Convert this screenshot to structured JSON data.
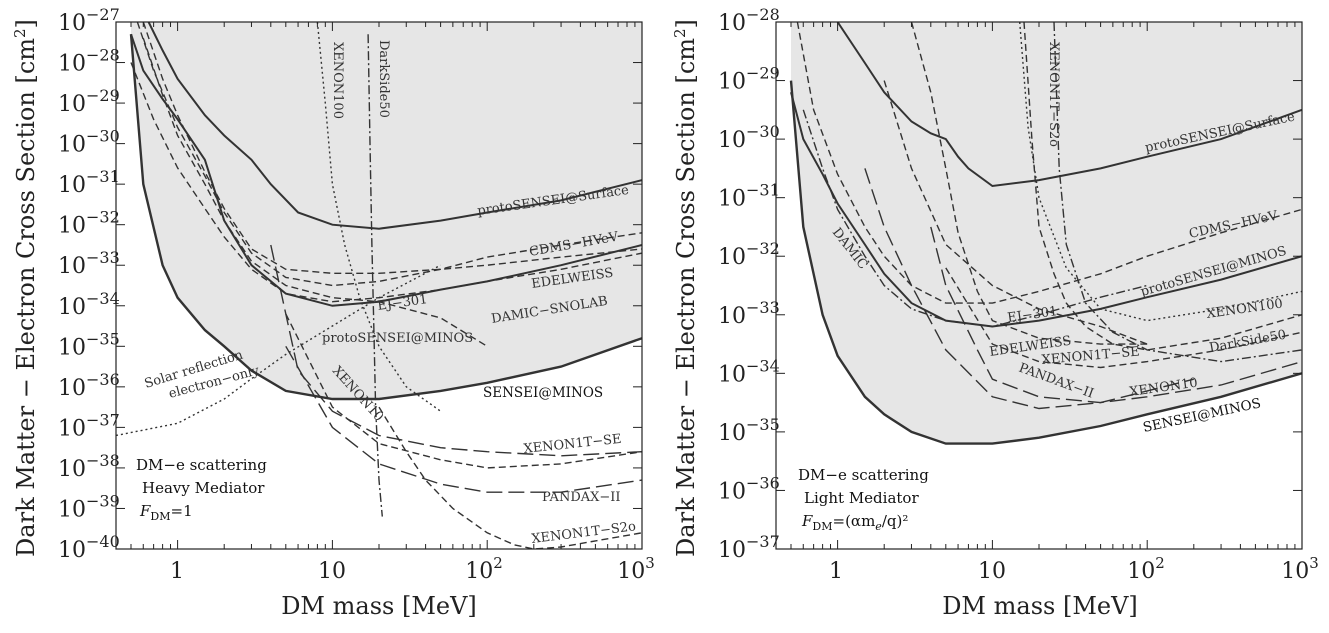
{
  "chart_data": [
    {
      "type": "line",
      "panel": "left",
      "xlabel": "DM mass [MeV]",
      "ylabel": "Dark Matter − Electron Cross Section [cm²]",
      "x_scale": "log",
      "y_scale": "log",
      "xlim": [
        0.4,
        1000
      ],
      "ylim": [
        1e-40,
        1e-27
      ],
      "x_ticks": [
        {
          "v": 1,
          "label": "1"
        },
        {
          "v": 10,
          "label": "10"
        },
        {
          "v": 100,
          "label": "10²"
        },
        {
          "v": 1000,
          "label": "10³"
        }
      ],
      "y_ticks": [
        -27,
        -28,
        -29,
        -30,
        -31,
        -32,
        -33,
        -34,
        -35,
        -36,
        -37,
        -38,
        -39,
        -40
      ],
      "annotation": [
        "DM−e scattering",
        "Heavy Mediator",
        "F_DM=1"
      ],
      "region_fill": "#e6e6e6",
      "series": [
        {
          "name": "SENSEI@MINOS",
          "style": "solid-thick",
          "x": [
            0.5,
            0.6,
            0.8,
            1,
            1.5,
            2,
            3,
            5,
            10,
            20,
            50,
            100,
            300,
            1000
          ],
          "logy": [
            -27.3,
            -31.0,
            -33.0,
            -33.8,
            -34.6,
            -35.0,
            -35.6,
            -36.1,
            -36.3,
            -36.3,
            -36.1,
            -35.9,
            -35.5,
            -34.8
          ]
        },
        {
          "name": "protoSENSEI@Surface",
          "style": "solid",
          "x": [
            0.65,
            0.8,
            1,
            1.5,
            2,
            3,
            4,
            6,
            10,
            20,
            50,
            100,
            300,
            1000
          ],
          "logy": [
            -27.0,
            -27.7,
            -28.4,
            -29.3,
            -29.8,
            -30.4,
            -31.0,
            -31.7,
            -32.0,
            -32.1,
            -31.9,
            -31.7,
            -31.4,
            -30.9
          ]
        },
        {
          "name": "protoSENSEI@MINOS",
          "style": "solid",
          "x": [
            0.5,
            0.6,
            0.8,
            1,
            1.5,
            2,
            3,
            5,
            10,
            20,
            50,
            100,
            300,
            1000
          ],
          "logy": [
            -27.3,
            -28.2,
            -28.9,
            -29.4,
            -30.4,
            -31.9,
            -33.0,
            -33.7,
            -34.0,
            -33.9,
            -33.6,
            -33.4,
            -33.0,
            -32.5
          ]
        },
        {
          "name": "DAMIC−SNOLAB",
          "style": "dashed",
          "x": [
            0.5,
            0.7,
            1,
            1.5,
            2,
            3,
            5,
            10,
            20,
            50,
            100,
            300,
            1000
          ],
          "logy": [
            -28.0,
            -29.4,
            -30.6,
            -31.6,
            -32.3,
            -33.1,
            -33.7,
            -33.9,
            -33.8,
            -33.6,
            -33.4,
            -33.1,
            -32.7
          ]
        },
        {
          "name": "CDMS−HVeV",
          "style": "dashed",
          "x": [
            0.55,
            0.7,
            1,
            1.5,
            2,
            3,
            5,
            10,
            20,
            50,
            100,
            300,
            1000
          ],
          "logy": [
            -27.0,
            -28.2,
            -29.6,
            -30.8,
            -31.7,
            -32.7,
            -33.3,
            -33.5,
            -33.4,
            -33.1,
            -32.8,
            -32.5,
            -32.2
          ]
        },
        {
          "name": "EDELWEISS",
          "style": "dashed",
          "x": [
            0.6,
            0.8,
            1,
            1.5,
            2,
            3,
            5,
            10,
            20,
            50,
            100,
            300,
            1000
          ],
          "logy": [
            -27.0,
            -28.4,
            -29.3,
            -30.7,
            -31.6,
            -32.6,
            -33.1,
            -33.2,
            -33.2,
            -33.1,
            -33.0,
            -32.8,
            -32.6
          ]
        },
        {
          "name": "EJ−301",
          "style": "dashed",
          "x": [
            0.6,
            0.8,
            1,
            1.5,
            2,
            3,
            5,
            10,
            20,
            50,
            100
          ],
          "logy": [
            -27.4,
            -28.8,
            -29.8,
            -31.0,
            -31.9,
            -32.9,
            -33.5,
            -33.8,
            -33.9,
            -34.3,
            -35.0
          ]
        },
        {
          "name": "XENON10",
          "style": "longdash",
          "x": [
            4,
            5,
            6,
            10,
            20,
            50,
            100,
            300,
            1000
          ],
          "logy": [
            -32.5,
            -34.2,
            -35.6,
            -36.6,
            -37.2,
            -37.5,
            -37.6,
            -37.7,
            -37.6
          ]
        },
        {
          "name": "XENON1T−SE",
          "style": "dashed",
          "x": [
            5,
            10,
            20,
            50,
            100,
            300,
            1000
          ],
          "logy": [
            -34.2,
            -36.5,
            -37.4,
            -37.8,
            -38.0,
            -37.9,
            -37.6
          ]
        },
        {
          "name": "PANDAX−II",
          "style": "longdash",
          "x": [
            5,
            10,
            20,
            50,
            100,
            300,
            1000
          ],
          "logy": [
            -35.0,
            -37.0,
            -37.9,
            -38.4,
            -38.6,
            -38.6,
            -38.3
          ]
        },
        {
          "name": "XENON1T−S2o",
          "style": "dashed",
          "x": [
            20,
            30,
            40,
            60,
            100,
            150,
            200,
            300,
            500,
            1000
          ],
          "logy": [
            -36.5,
            -37.6,
            -38.3,
            -39.0,
            -39.6,
            -39.9,
            -40.0,
            -39.95,
            -39.8,
            -39.6
          ]
        },
        {
          "name": "XENON100",
          "style": "dotted",
          "x": [
            8,
            9,
            10,
            12,
            15,
            20,
            30,
            50
          ],
          "logy": [
            -27.0,
            -29.0,
            -31.0,
            -32.5,
            -33.8,
            -35.0,
            -36.0,
            -36.6
          ]
        },
        {
          "name": "DarkSide50",
          "style": "dashdot",
          "x": [
            17,
            17.5,
            18,
            18.5,
            19,
            20,
            21
          ],
          "logy": [
            -27.3,
            -30.0,
            -32.5,
            -34.5,
            -36.5,
            -38.3,
            -39.2
          ]
        },
        {
          "name": "Solar reflection electron−only",
          "style": "dotted",
          "x": [
            0.4,
            1,
            2,
            3,
            5,
            10,
            20,
            50
          ],
          "logy": [
            -37.2,
            -36.9,
            -36.3,
            -35.8,
            -35.2,
            -34.5,
            -33.8,
            -33.0
          ]
        }
      ]
    },
    {
      "type": "line",
      "panel": "right",
      "xlabel": "DM mass [MeV]",
      "ylabel": "Dark Matter − Electron Cross Section [cm²]",
      "x_scale": "log",
      "y_scale": "log",
      "xlim": [
        0.4,
        1000
      ],
      "ylim": [
        1e-37,
        1e-28
      ],
      "x_ticks": [
        {
          "v": 1,
          "label": "1"
        },
        {
          "v": 10,
          "label": "10"
        },
        {
          "v": 100,
          "label": "10²"
        },
        {
          "v": 1000,
          "label": "10³"
        }
      ],
      "y_ticks": [
        -28,
        -29,
        -30,
        -31,
        -32,
        -33,
        -34,
        -35,
        -36,
        -37
      ],
      "annotation": [
        "DM−e scattering",
        "Light Mediator",
        "F_DM=(αmₑ/q)²"
      ],
      "region_fill": "#e6e6e6",
      "series": [
        {
          "name": "SENSEI@MINOS",
          "style": "solid-thick",
          "x": [
            0.5,
            0.6,
            0.8,
            1,
            1.5,
            2,
            3,
            5,
            10,
            20,
            50,
            100,
            300,
            1000
          ],
          "logy": [
            -29.0,
            -31.5,
            -33.0,
            -33.7,
            -34.4,
            -34.7,
            -35.0,
            -35.2,
            -35.2,
            -35.1,
            -34.9,
            -34.7,
            -34.4,
            -34.0
          ]
        },
        {
          "name": "protoSENSEI@Surface",
          "style": "solid",
          "x": [
            1,
            1.5,
            2,
            3,
            4,
            5,
            6,
            7,
            10,
            20,
            50,
            100,
            300,
            1000
          ],
          "logy": [
            -28.0,
            -28.7,
            -29.2,
            -29.7,
            -29.9,
            -30.0,
            -30.3,
            -30.5,
            -30.8,
            -30.7,
            -30.5,
            -30.3,
            -30.0,
            -29.5
          ]
        },
        {
          "name": "protoSENSEI@MINOS",
          "style": "solid",
          "x": [
            0.5,
            0.6,
            0.8,
            1,
            1.5,
            2,
            3,
            5,
            10,
            20,
            50,
            100,
            300,
            1000
          ],
          "logy": [
            -29.2,
            -30.0,
            -30.6,
            -31.1,
            -31.8,
            -32.3,
            -32.8,
            -33.1,
            -33.2,
            -33.1,
            -32.9,
            -32.7,
            -32.4,
            -32.0
          ]
        },
        {
          "name": "CDMS−HVeV",
          "style": "dashed",
          "x": [
            0.55,
            0.7,
            1,
            1.5,
            2,
            3,
            5,
            10,
            20,
            50,
            100,
            300,
            1000
          ],
          "logy": [
            -28.0,
            -29.5,
            -30.6,
            -31.5,
            -32.0,
            -32.5,
            -32.8,
            -32.8,
            -32.6,
            -32.3,
            -32.0,
            -31.6,
            -31.2
          ]
        },
        {
          "name": "EDELWEISS",
          "style": "dashed",
          "x": [
            3,
            4,
            5,
            6,
            8,
            10,
            20,
            50,
            100
          ],
          "logy": [
            -28.0,
            -29.2,
            -30.5,
            -31.6,
            -32.6,
            -33.1,
            -33.4,
            -33.5,
            -33.5
          ]
        },
        {
          "name": "EJ−301",
          "style": "dashed",
          "x": [
            2,
            3,
            5,
            10,
            20,
            50,
            100
          ],
          "logy": [
            -29.0,
            -30.5,
            -31.8,
            -32.5,
            -32.9,
            -33.2,
            -33.5
          ]
        },
        {
          "name": "DAMIC",
          "style": "dashdot",
          "x": [
            0.6,
            0.8,
            1,
            1.5,
            2,
            3,
            5,
            10,
            20,
            50,
            100
          ],
          "logy": [
            -29.5,
            -30.5,
            -31.2,
            -32.0,
            -32.5,
            -32.9,
            -33.1,
            -33.2,
            -33.0,
            -32.7,
            -32.5
          ]
        },
        {
          "name": "XENON10",
          "style": "longdash",
          "x": [
            1.5,
            2,
            3,
            5,
            10,
            20,
            50,
            100,
            200
          ],
          "logy": [
            -30.5,
            -31.5,
            -32.5,
            -33.6,
            -34.4,
            -34.6,
            -34.5,
            -34.3,
            -34.1
          ]
        },
        {
          "name": "XENON1T−SE",
          "style": "dashed",
          "x": [
            5,
            10,
            20,
            50,
            100,
            300,
            1000
          ],
          "logy": [
            -32.2,
            -33.5,
            -33.8,
            -33.9,
            -33.8,
            -33.6,
            -33.3
          ]
        },
        {
          "name": "PANDAX−II",
          "style": "longdash",
          "x": [
            4,
            5,
            8,
            10,
            20,
            50,
            100,
            300,
            1000
          ],
          "logy": [
            -31.5,
            -32.5,
            -33.6,
            -34.1,
            -34.4,
            -34.5,
            -34.4,
            -34.2,
            -33.8
          ]
        },
        {
          "name": "XENON1T−S2o",
          "style": "dashed",
          "x": [
            16,
            18,
            20,
            25,
            30,
            40,
            60,
            100,
            300,
            1000
          ],
          "logy": [
            -28.0,
            -30.0,
            -31.5,
            -32.3,
            -32.8,
            -33.2,
            -33.5,
            -33.6,
            -33.4,
            -33.0
          ]
        },
        {
          "name": "XENON100",
          "style": "dotted",
          "x": [
            15,
            17,
            20,
            30,
            50,
            100,
            300,
            1000
          ],
          "logy": [
            -28.0,
            -29.8,
            -31.0,
            -32.2,
            -32.9,
            -33.1,
            -32.9,
            -32.6
          ]
        },
        {
          "name": "DarkSide50",
          "style": "dashdot",
          "x": [
            25,
            27,
            30,
            40,
            60,
            100,
            300,
            1000
          ],
          "logy": [
            -28.0,
            -30.5,
            -31.8,
            -32.8,
            -33.3,
            -33.6,
            -33.8,
            -33.6
          ]
        }
      ]
    }
  ],
  "panels": [
    {
      "y_tick_labels": [
        {
          "base": "10",
          "exp": "−27"
        },
        {
          "base": "10",
          "exp": "−28"
        },
        {
          "base": "10",
          "exp": "−29"
        },
        {
          "base": "10",
          "exp": "−30"
        },
        {
          "base": "10",
          "exp": "−31"
        },
        {
          "base": "10",
          "exp": "−32"
        },
        {
          "base": "10",
          "exp": "−33"
        },
        {
          "base": "10",
          "exp": "−34"
        },
        {
          "base": "10",
          "exp": "−35"
        },
        {
          "base": "10",
          "exp": "−36"
        },
        {
          "base": "10",
          "exp": "−37"
        },
        {
          "base": "10",
          "exp": "−38"
        },
        {
          "base": "10",
          "exp": "−39"
        },
        {
          "base": "10",
          "exp": "−40"
        }
      ],
      "labels": {
        "surface": "protoSENSEI@Surface",
        "cdms": "CDMS−HVeV",
        "edelweiss": "EDELWEISS",
        "ej301": "EJ−301",
        "damic_snolab": "DAMIC−SNOLAB",
        "proto_minos": "protoSENSEI@MINOS",
        "sensei_minos": "SENSEI@MINOS",
        "xenon10": "XENON10",
        "xenon1t_se": "XENON1T−SE",
        "pandax": "PANDAX−II",
        "xenon1t_s2o": "XENON1T−S2o",
        "xenon100": "XENON100",
        "darkside50": "DarkSide50",
        "solar1": "Solar reflection",
        "solar2": "electron−only",
        "note1": "DM−e scattering",
        "note2": "Heavy Mediator",
        "note3_main": "F",
        "note3_sub": "DM",
        "note3_rest": "=1"
      }
    },
    {
      "y_tick_labels": [
        {
          "base": "10",
          "exp": "−28"
        },
        {
          "base": "10",
          "exp": "−29"
        },
        {
          "base": "10",
          "exp": "−30"
        },
        {
          "base": "10",
          "exp": "−31"
        },
        {
          "base": "10",
          "exp": "−32"
        },
        {
          "base": "10",
          "exp": "−33"
        },
        {
          "base": "10",
          "exp": "−34"
        },
        {
          "base": "10",
          "exp": "−35"
        },
        {
          "base": "10",
          "exp": "−36"
        },
        {
          "base": "10",
          "exp": "−37"
        }
      ],
      "labels": {
        "surface": "protoSENSEI@Surface",
        "cdms": "CDMS−HVeV",
        "proto_minos": "protoSENSEI@MINOS",
        "xenon100": "XENON100",
        "darkside50": "DarkSide50",
        "ej301": "EJ−301",
        "edelweiss": "EDELWEISS",
        "xenon1t_se": "XENON1T−SE",
        "pandax": "PANDAX−II",
        "xenon10": "XENON10",
        "sensei_minos": "SENSEI@MINOS",
        "damic": "DAMIC",
        "xenon1t_s2o": "XENON1T−S2o",
        "note1": "DM−e scattering",
        "note2": "Light Mediator",
        "note3_main": "F",
        "note3_sub": "DM",
        "note3_rest": "=(αm",
        "note3_sub2": "e",
        "note3_end": "/q)²"
      }
    }
  ],
  "x_tick_labels": {
    "one": "1",
    "ten": "10",
    "hundred_base": "10",
    "hundred_exp": "2",
    "thousand_base": "10",
    "thousand_exp": "3"
  },
  "axis_texts": {
    "xlabel": "DM mass [MeV]",
    "ylabel_main": "Dark Matter − Electron Cross Section [cm",
    "ylabel_sup": "2",
    "ylabel_end": "]"
  }
}
